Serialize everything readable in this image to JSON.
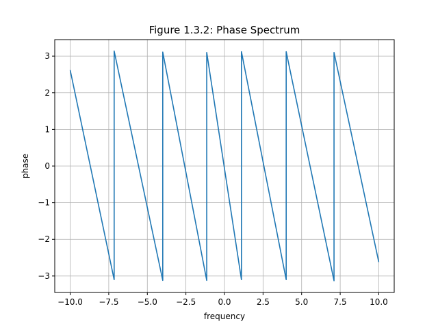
{
  "chart_data": {
    "type": "line",
    "title": "Figure 1.3.2: Phase Spectrum",
    "xlabel": "frequency",
    "ylabel": "phase",
    "xlim": [
      -11.0,
      11.0
    ],
    "ylim": [
      -3.45,
      3.45
    ],
    "grid": true,
    "x_ticks": [
      -10.0,
      -7.5,
      -5.0,
      -2.5,
      0.0,
      2.5,
      5.0,
      7.5,
      10.0
    ],
    "x_tick_labels": [
      "−10.0",
      "−7.5",
      "−5.0",
      "−2.5",
      "0.0",
      "2.5",
      "5.0",
      "7.5",
      "10.0"
    ],
    "y_ticks": [
      -3,
      -2,
      -1,
      0,
      1,
      2,
      3
    ],
    "y_tick_labels": [
      "−3",
      "−2",
      "−1",
      "0",
      "1",
      "2",
      "3"
    ],
    "series": [
      {
        "color": "#1f77b4",
        "x": [
          -10.0,
          -7.15,
          -7.15,
          -4.0,
          -4.0,
          -1.15,
          -1.15,
          1.1,
          1.1,
          4.0,
          4.0,
          7.1,
          7.1,
          10.0
        ],
        "y": [
          2.62,
          -3.1,
          3.14,
          -3.12,
          3.11,
          -3.12,
          3.1,
          -3.1,
          3.12,
          -3.1,
          3.12,
          -3.13,
          3.1,
          -2.62
        ]
      }
    ]
  }
}
